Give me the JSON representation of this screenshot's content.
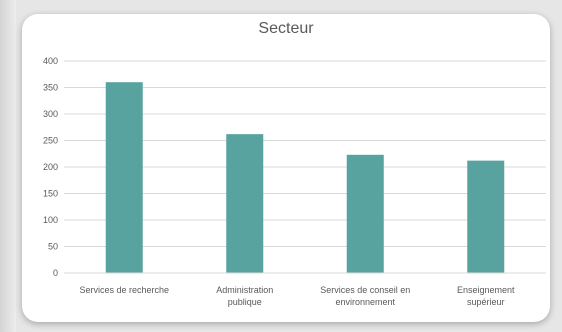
{
  "chart_data": {
    "type": "bar",
    "title": "Secteur",
    "xlabel": "",
    "ylabel": "",
    "categories": [
      [
        "Services de recherche"
      ],
      [
        "Administration",
        "publique"
      ],
      [
        "Services de conseil en",
        "environnement"
      ],
      [
        "Enseignement",
        "supérieur"
      ]
    ],
    "values": [
      360,
      262,
      223,
      212
    ],
    "ylim": [
      0,
      400
    ],
    "yticks": [
      0,
      50,
      100,
      150,
      200,
      250,
      300,
      350,
      400
    ],
    "grid": true,
    "legend": "none",
    "bar_color": "#58a29f",
    "grid_color": "#d9d9d9",
    "text_color": "#595959"
  }
}
